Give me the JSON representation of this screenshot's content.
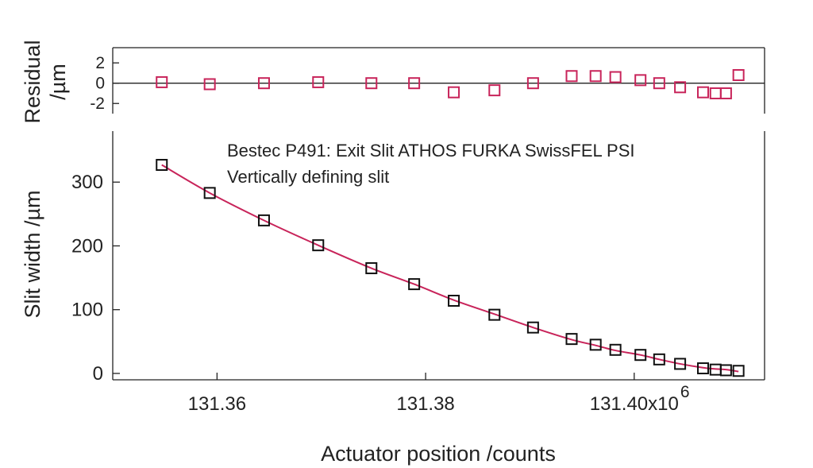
{
  "chart_data": [
    {
      "panel": "residual",
      "type": "scatter",
      "ylabel_line1": "Residual",
      "ylabel_line2": "/µm",
      "ylim": [
        -3,
        3.5
      ],
      "yticks": [
        "2",
        "0",
        "-2"
      ],
      "ytick_values": [
        2,
        0,
        -2
      ],
      "zero_line": true,
      "marker_color": "#c8245a",
      "series": [
        {
          "x": [
            131.3547,
            131.3593,
            131.3645,
            131.3697,
            131.3748,
            131.3789,
            131.3827,
            131.3866,
            131.3903,
            131.394,
            131.3963,
            131.3982,
            131.4006,
            131.4024,
            131.4044,
            131.4066,
            131.4078,
            131.4088,
            131.41
          ],
          "y": [
            0.1,
            -0.1,
            0.0,
            0.1,
            0.0,
            0.0,
            -0.9,
            -0.7,
            0.0,
            0.7,
            0.7,
            0.6,
            0.3,
            0.0,
            -0.4,
            -0.9,
            -1.0,
            -1.0,
            0.8
          ]
        }
      ]
    },
    {
      "panel": "main",
      "type": "scatter",
      "xlabel": "Actuator position /counts",
      "ylabel": "Slit width /µm",
      "annotation_line1": "Bestec P491: Exit Slit ATHOS FURKA SwissFEL PSI",
      "annotation_line2": "Vertically defining slit",
      "xlim": [
        131.35,
        131.4125
      ],
      "ylim": [
        -10,
        380
      ],
      "xticks": [
        "131.36",
        "131.38",
        "131.40x10"
      ],
      "xtick_values": [
        131.36,
        131.38,
        131.4
      ],
      "x_exponent": "6",
      "yticks": [
        "0",
        "100",
        "200",
        "300"
      ],
      "ytick_values": [
        0,
        100,
        200,
        300
      ],
      "marker_color": "#111111",
      "fit_color": "#c8245a",
      "series": [
        {
          "x": [
            131.3547,
            131.3593,
            131.3645,
            131.3697,
            131.3748,
            131.3789,
            131.3827,
            131.3866,
            131.3903,
            131.394,
            131.3963,
            131.3982,
            131.4006,
            131.4024,
            131.4044,
            131.4066,
            131.4078,
            131.4088,
            131.41
          ],
          "y": [
            327,
            283,
            240,
            201,
            165,
            140,
            114,
            92,
            72,
            54,
            45,
            37,
            29,
            22,
            15,
            8,
            6,
            5,
            4
          ]
        }
      ],
      "fit": {
        "x": [
          131.3547,
          131.3593,
          131.3645,
          131.3697,
          131.3748,
          131.3789,
          131.3827,
          131.3866,
          131.3903,
          131.394,
          131.3963,
          131.3982,
          131.4006,
          131.4024,
          131.4044,
          131.4066,
          131.4078,
          131.4088,
          131.41
        ],
        "y": [
          327,
          283,
          240,
          201,
          165,
          140,
          115,
          93,
          72,
          53,
          44,
          36,
          29,
          22,
          15,
          9,
          7,
          6,
          3
        ]
      }
    }
  ]
}
